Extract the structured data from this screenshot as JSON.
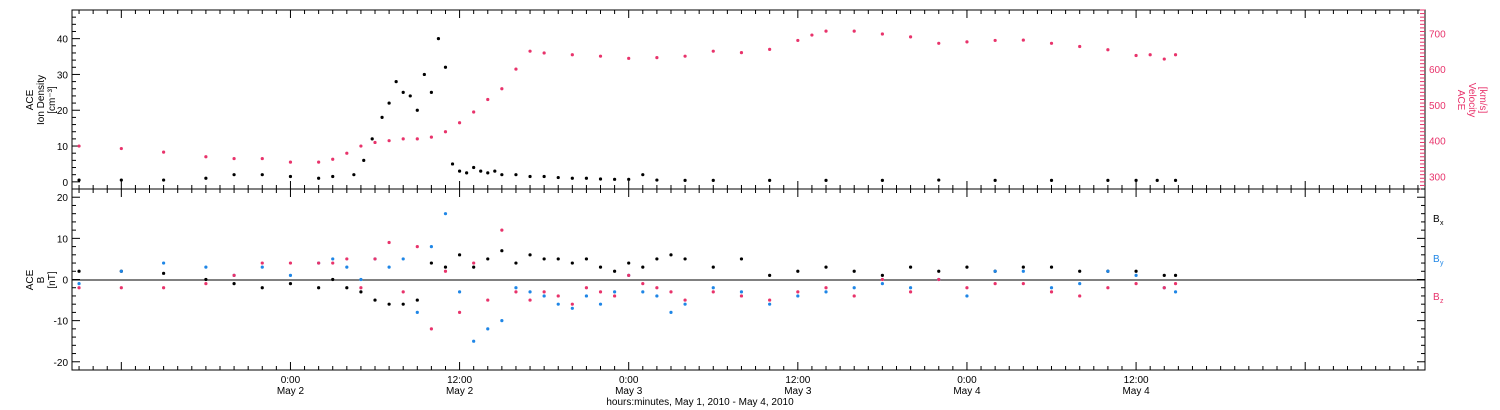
{
  "xaxis": {
    "title": "hours:minutes, May  1, 2010 - May  4, 2010",
    "range_hours": [
      -15.5,
      80.5
    ],
    "ticks": [
      {
        "hour": 0,
        "time": "0:00",
        "day": "May 2"
      },
      {
        "hour": 12,
        "time": "12:00",
        "day": "May 2"
      },
      {
        "hour": 24,
        "time": "0:00",
        "day": "May 3"
      },
      {
        "hour": 36,
        "time": "12:00",
        "day": "May 3"
      },
      {
        "hour": 48,
        "time": "0:00",
        "day": "May 4"
      },
      {
        "hour": 60,
        "time": "12:00",
        "day": "May 4"
      }
    ]
  },
  "colors": {
    "black": "#000000",
    "pink": "#e8336b",
    "blue": "#1f86e6"
  },
  "chart_data": [
    {
      "type": "scatter",
      "panel": "top",
      "ylabel_left": [
        "ACE",
        "Ion Density",
        "[cm⁻³]"
      ],
      "ylabel_right": [
        "ACE",
        "Velocity",
        "[km/s]"
      ],
      "ylim_left": [
        -2,
        48
      ],
      "yticks_left": [
        0,
        10,
        20,
        30,
        40
      ],
      "ylim_right": [
        265,
        765
      ],
      "yticks_right": [
        300,
        400,
        500,
        600,
        700
      ],
      "series": [
        {
          "axis": "left",
          "color": "black",
          "x": [
            -15,
            -12,
            -9,
            -6,
            -4,
            -2,
            0,
            2,
            3,
            4.5,
            5.2,
            5.8,
            6.5,
            7,
            7.5,
            8,
            8.5,
            9,
            9.5,
            10,
            10.5,
            11,
            11.5,
            12,
            12.5,
            13,
            13.5,
            14,
            14.5,
            15,
            16,
            17,
            18,
            19,
            20,
            21,
            22,
            23,
            24,
            25,
            26,
            28,
            30,
            34,
            38,
            42,
            46,
            50,
            54,
            58,
            60,
            61.5,
            62.8
          ],
          "y": [
            0.5,
            0.5,
            0.5,
            1,
            2,
            2,
            1.5,
            1,
            1.5,
            2,
            6,
            12,
            18,
            22,
            28,
            25,
            24,
            20,
            30,
            25,
            40,
            32,
            5,
            3,
            2.5,
            4,
            3,
            2.5,
            3,
            2,
            2,
            1.5,
            1.5,
            1.2,
            1,
            1,
            0.8,
            0.7,
            0.7,
            2,
            0.5,
            0.4,
            0.4,
            0.4,
            0.4,
            0.4,
            0.5,
            0.4,
            0.4,
            0.4,
            0.4,
            0.4,
            0.4
          ]
        },
        {
          "axis": "right",
          "color": "pink",
          "x": [
            -15,
            -12,
            -9,
            -6,
            -4,
            -2,
            0,
            2,
            3,
            4,
            5,
            6,
            7,
            8,
            9,
            10,
            11,
            12,
            13,
            14,
            15,
            16,
            17,
            18,
            20,
            22,
            24,
            26,
            28,
            30,
            32,
            34,
            36,
            37,
            38,
            40,
            42,
            44,
            46,
            48,
            50,
            52,
            54,
            56,
            58,
            60,
            61,
            62,
            62.8
          ],
          "y": [
            385,
            378,
            368,
            355,
            350,
            350,
            340,
            340,
            348,
            365,
            385,
            395,
            400,
            405,
            405,
            410,
            425,
            450,
            480,
            515,
            545,
            600,
            650,
            645,
            640,
            636,
            630,
            632,
            636,
            650,
            646,
            655,
            680,
            695,
            706,
            706,
            698,
            690,
            672,
            676,
            680,
            681,
            672,
            663,
            654,
            638,
            640,
            628,
            640
          ]
        }
      ]
    },
    {
      "type": "scatter",
      "panel": "bottom",
      "ylabel_left": [
        "ACE",
        "B",
        "[nT]"
      ],
      "ylim": [
        -22,
        22
      ],
      "yticks": [
        -20,
        -10,
        0,
        10,
        20
      ],
      "zero_line": true,
      "series": [
        {
          "name": "B",
          "subscript": "x",
          "color": "black",
          "x": [
            -15,
            -12,
            -9,
            -6,
            -4,
            -2,
            0,
            2,
            3,
            4,
            5,
            6,
            7,
            8,
            9,
            10,
            11,
            12,
            13,
            14,
            15,
            16,
            17,
            18,
            19,
            20,
            21,
            22,
            23,
            24,
            25,
            26,
            27,
            28,
            30,
            32,
            34,
            36,
            38,
            40,
            42,
            44,
            46,
            48,
            50,
            52,
            54,
            56,
            58,
            60,
            62,
            62.8
          ],
          "y": [
            2,
            2,
            1.5,
            0,
            -1,
            -2,
            -1,
            -2,
            0,
            -2,
            -3,
            -5,
            -6,
            -6,
            -5,
            4,
            3,
            6,
            3,
            5,
            7,
            4,
            6,
            5,
            5,
            4,
            5,
            3,
            2,
            4,
            3,
            5,
            6,
            5,
            3,
            5,
            1,
            2,
            3,
            2,
            1,
            3,
            2,
            3,
            2,
            3,
            3,
            2,
            2,
            2,
            1,
            1
          ]
        },
        {
          "name": "B",
          "subscript": "y",
          "color": "blue",
          "x": [
            -15,
            -12,
            -9,
            -6,
            -4,
            -2,
            0,
            2,
            3,
            4,
            5,
            6,
            7,
            8,
            9,
            10,
            11,
            12,
            13,
            14,
            15,
            16,
            17,
            18,
            19,
            20,
            21,
            22,
            23,
            24,
            25,
            26,
            27,
            28,
            30,
            32,
            34,
            36,
            38,
            40,
            42,
            44,
            46,
            48,
            50,
            52,
            54,
            56,
            58,
            60,
            62,
            62.8
          ],
          "y": [
            -1,
            2,
            4,
            3,
            1,
            3,
            1,
            4,
            5,
            3,
            0,
            5,
            3,
            5,
            -8,
            8,
            16,
            -3,
            -15,
            -12,
            -10,
            -2,
            -3,
            -4,
            -6,
            -7,
            -4,
            -6,
            -3,
            1,
            -3,
            -4,
            -8,
            -6,
            -2,
            -3,
            -6,
            -4,
            -3,
            -2,
            -1,
            -2,
            0,
            -4,
            2,
            2,
            -2,
            -1,
            2,
            1,
            -2,
            -3
          ]
        },
        {
          "name": "B",
          "subscript": "z",
          "color": "pink",
          "x": [
            -15,
            -12,
            -9,
            -6,
            -4,
            -2,
            0,
            2,
            3,
            4,
            5,
            6,
            7,
            8,
            9,
            10,
            11,
            12,
            13,
            14,
            15,
            16,
            17,
            18,
            19,
            20,
            21,
            22,
            23,
            24,
            25,
            26,
            27,
            28,
            30,
            32,
            34,
            36,
            38,
            40,
            42,
            44,
            46,
            48,
            50,
            52,
            54,
            56,
            58,
            60,
            62,
            62.8
          ],
          "y": [
            -2,
            -2,
            -2,
            -1,
            1,
            4,
            4,
            4,
            4,
            5,
            -2,
            5,
            9,
            -3,
            8,
            -12,
            2,
            -8,
            4,
            -5,
            12,
            -3,
            -5,
            -3,
            -4,
            -6,
            -2,
            -3,
            -4,
            1,
            -1,
            -2,
            -3,
            -5,
            -3,
            -4,
            -5,
            -3,
            -2,
            -4,
            0,
            -3,
            0,
            -2,
            -1,
            -1,
            -3,
            -4,
            -2,
            -1,
            -2,
            -1
          ]
        }
      ]
    }
  ]
}
